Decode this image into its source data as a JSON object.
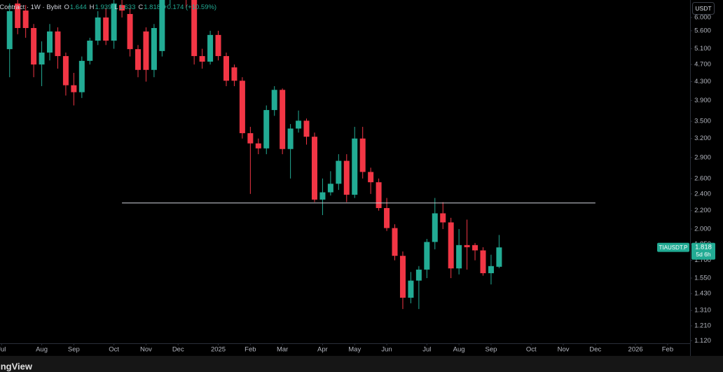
{
  "header": {
    "symbol": "Perpetual Contract · 1W · Bybit",
    "ohlc_labels": [
      "O",
      "H",
      "L",
      "C"
    ],
    "change": "+0.174 (+10.59%)"
  },
  "currency_button": "USDT",
  "symbol_label": "TIAUSDT.P",
  "countdown": "5d 6h",
  "brand": "TradingView",
  "chart_data": {
    "type": "candlestick",
    "log_scale": true,
    "up_color": "#22ab94",
    "down_color": "#f23645",
    "xlim": [
      -1.2,
      84.8
    ],
    "xticks": [
      {
        "value": -1,
        "label": "Jul"
      },
      {
        "value": 4,
        "label": "Aug"
      },
      {
        "value": 8,
        "label": "Sep"
      },
      {
        "value": 13,
        "label": "Oct"
      },
      {
        "value": 17,
        "label": "Nov"
      },
      {
        "value": 21,
        "label": "Dec"
      },
      {
        "value": 26,
        "label": "2025"
      },
      {
        "value": 30,
        "label": "Feb"
      },
      {
        "value": 34,
        "label": "Mar"
      },
      {
        "value": 39,
        "label": "Apr"
      },
      {
        "value": 43,
        "label": "May"
      },
      {
        "value": 47,
        "label": "Jun"
      },
      {
        "value": 52,
        "label": "Jul"
      },
      {
        "value": 56,
        "label": "Aug"
      },
      {
        "value": 60,
        "label": "Sep"
      },
      {
        "value": 65,
        "label": "Oct"
      },
      {
        "value": 69,
        "label": "Nov"
      },
      {
        "value": 73,
        "label": "Dec"
      },
      {
        "value": 78,
        "label": "2026"
      },
      {
        "value": 82,
        "label": "Feb"
      }
    ],
    "ylim": [
      1.105,
      6.57
    ],
    "yticks": [
      {
        "value": 6.0,
        "label": "6.000"
      },
      {
        "value": 5.6,
        "label": "5.600"
      },
      {
        "value": 5.1,
        "label": "5.100"
      },
      {
        "value": 4.7,
        "label": "4.700"
      },
      {
        "value": 4.3,
        "label": "4.300"
      },
      {
        "value": 3.9,
        "label": "3.900"
      },
      {
        "value": 3.5,
        "label": "3.500"
      },
      {
        "value": 3.2,
        "label": "3.200"
      },
      {
        "value": 2.9,
        "label": "2.900"
      },
      {
        "value": 2.6,
        "label": "2.600"
      },
      {
        "value": 2.4,
        "label": "2.400"
      },
      {
        "value": 2.2,
        "label": "2.200"
      },
      {
        "value": 2.0,
        "label": "2.000"
      },
      {
        "value": 1.85,
        "label": "1.850"
      },
      {
        "value": 1.7,
        "label": "1.700"
      },
      {
        "value": 1.55,
        "label": "1.550"
      },
      {
        "value": 1.43,
        "label": "1.430"
      },
      {
        "value": 1.31,
        "label": "1.310"
      },
      {
        "value": 1.21,
        "label": "1.210"
      },
      {
        "value": 1.12,
        "label": "1.120"
      }
    ],
    "open": [
      5.09,
      6.45,
      6.22,
      5.68,
      4.7,
      5.0,
      5.58,
      4.91,
      4.22,
      4.07,
      4.79,
      5.32,
      6.0,
      5.32,
      6.4,
      6.11,
      5.09,
      5.58,
      4.57,
      5.04,
      6.57,
      7.2,
      6.9,
      6.6,
      4.91,
      4.77,
      5.48,
      4.91,
      4.63,
      4.32,
      3.29,
      3.12,
      3.04,
      3.71,
      4.12,
      3.03,
      3.37,
      3.51,
      3.23,
      2.33,
      2.42,
      2.53,
      2.85,
      2.39,
      3.2,
      2.69,
      2.55,
      2.23,
      2.01,
      1.74,
      1.4,
      1.53,
      1.62,
      1.87,
      2.17,
      2.07,
      1.63,
      1.84,
      1.84,
      1.79,
      1.59,
      1.644
    ],
    "high": [
      6.45,
      6.6,
      6.4,
      5.8,
      5.3,
      5.8,
      5.7,
      5.0,
      4.5,
      4.9,
      5.4,
      6.2,
      6.3,
      6.7,
      6.7,
      6.3,
      5.2,
      5.7,
      5.8,
      6.8,
      7.5,
      7.6,
      7.1,
      6.8,
      5.1,
      5.6,
      5.6,
      5.0,
      4.7,
      4.4,
      3.4,
      3.2,
      3.8,
      4.2,
      4.15,
      3.45,
      3.7,
      3.55,
      3.3,
      2.6,
      2.7,
      2.95,
      2.95,
      3.4,
      3.4,
      2.75,
      2.6,
      2.35,
      2.05,
      1.78,
      1.6,
      1.65,
      1.9,
      2.35,
      2.3,
      2.12,
      2.0,
      2.1,
      1.86,
      1.82,
      1.75,
      1.939
    ],
    "low": [
      4.4,
      5.5,
      5.4,
      4.4,
      4.2,
      4.8,
      4.6,
      4.0,
      3.8,
      3.95,
      4.7,
      5.2,
      5.2,
      5.1,
      6.0,
      4.9,
      4.4,
      4.3,
      4.4,
      4.9,
      6.4,
      6.7,
      6.3,
      4.7,
      4.6,
      4.7,
      4.8,
      4.2,
      4.2,
      3.2,
      2.4,
      2.95,
      2.95,
      3.6,
      2.95,
      2.6,
      3.3,
      3.1,
      2.3,
      2.15,
      2.38,
      2.45,
      2.3,
      2.35,
      2.6,
      2.4,
      2.2,
      1.98,
      1.7,
      1.32,
      1.36,
      1.32,
      1.55,
      1.8,
      2.0,
      1.55,
      1.58,
      1.62,
      1.7,
      1.57,
      1.5,
      1.633
    ],
    "close": [
      6.2,
      5.68,
      5.68,
      4.7,
      5.0,
      5.58,
      4.91,
      4.22,
      4.07,
      4.79,
      5.32,
      6.0,
      5.32,
      6.45,
      6.22,
      5.09,
      4.57,
      4.57,
      5.68,
      6.57,
      7.2,
      6.9,
      6.6,
      4.91,
      4.77,
      5.48,
      4.91,
      4.32,
      4.32,
      3.29,
      3.12,
      3.04,
      3.71,
      4.12,
      3.03,
      3.37,
      3.51,
      3.23,
      2.33,
      2.42,
      2.53,
      2.85,
      2.39,
      3.2,
      2.69,
      2.55,
      2.23,
      2.01,
      1.74,
      1.4,
      1.53,
      1.62,
      1.87,
      2.17,
      2.07,
      1.63,
      1.84,
      1.82,
      1.79,
      1.59,
      1.65,
      1.818
    ],
    "hline": {
      "value": 2.29,
      "from": 14,
      "to": 73
    }
  }
}
